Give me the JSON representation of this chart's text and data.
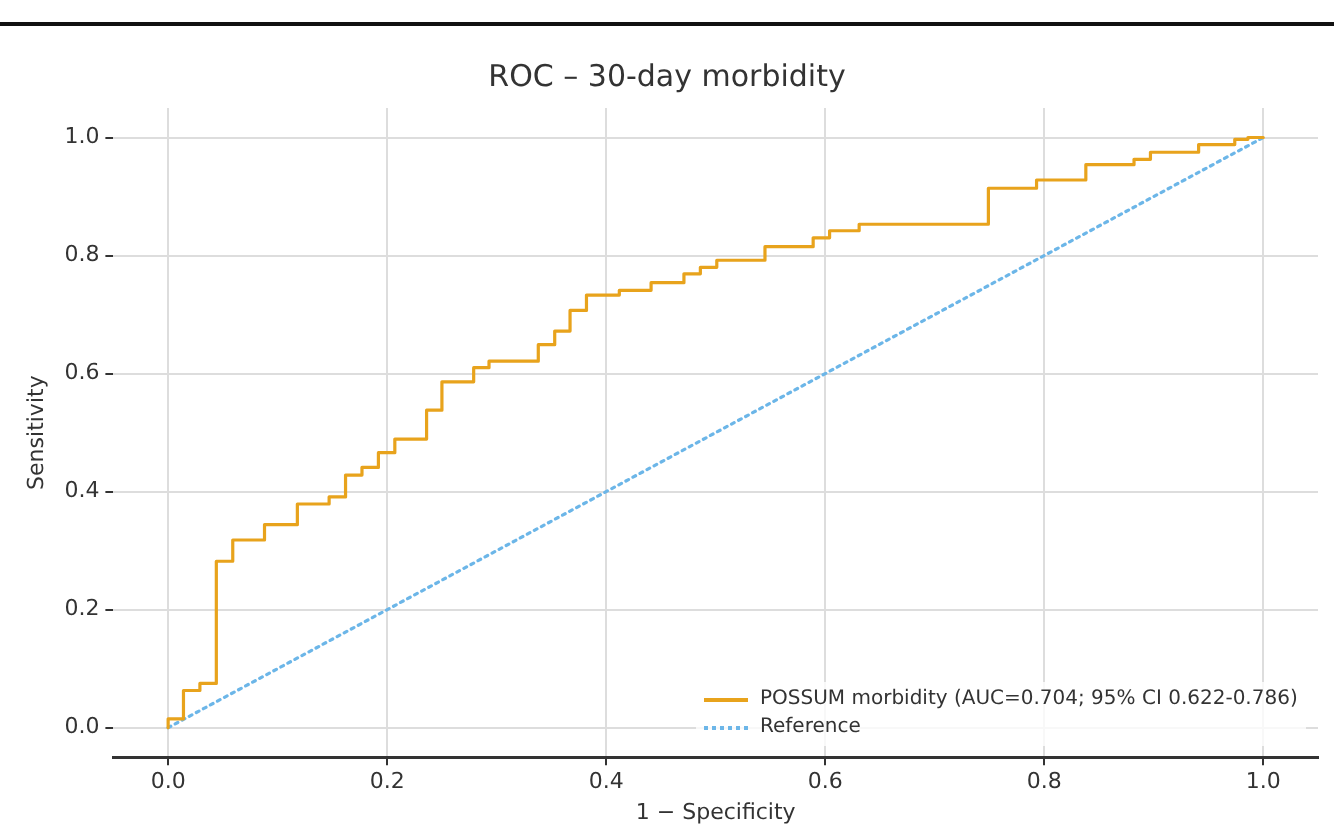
{
  "chart_data": {
    "type": "step",
    "title": "ROC – 30-day morbidity",
    "xlabel": "1 − Specificity",
    "ylabel": "Sensitivity",
    "series": [
      {
        "name": "POSSUM morbidity (AUC=0.704; 95% CI 0.622-0.786)",
        "type": "step",
        "color": "#e8a31c",
        "line_style": "solid",
        "x": [
          0,
          0,
          0.014,
          0.029,
          0.044,
          0.059,
          0.088,
          0.118,
          0.147,
          0.162,
          0.177,
          0.192,
          0.207,
          0.236,
          0.25,
          0.279,
          0.293,
          0.338,
          0.353,
          0.367,
          0.382,
          0.412,
          0.441,
          0.471,
          0.486,
          0.501,
          0.545,
          0.589,
          0.604,
          0.631,
          0.749,
          0.793,
          0.838,
          0.882,
          0.897,
          0.941,
          0.974,
          0.986,
          1
        ],
        "values": [
          0,
          0.015,
          0.063,
          0.075,
          0.282,
          0.318,
          0.344,
          0.379,
          0.391,
          0.428,
          0.441,
          0.466,
          0.489,
          0.538,
          0.586,
          0.61,
          0.621,
          0.649,
          0.672,
          0.707,
          0.733,
          0.741,
          0.754,
          0.769,
          0.78,
          0.792,
          0.815,
          0.83,
          0.842,
          0.853,
          0.914,
          0.928,
          0.954,
          0.963,
          0.975,
          0.988,
          0.997,
          1,
          1
        ]
      },
      {
        "name": "Reference",
        "type": "line",
        "color": "#6cb6e8",
        "line_style": "dotted",
        "x": [
          0,
          1
        ],
        "values": [
          0,
          1
        ]
      }
    ],
    "xlim": [
      -0.05,
      1.05
    ],
    "ylim": [
      -0.05,
      1.05
    ],
    "xticks": [
      {
        "value": 0,
        "label": "0.0"
      },
      {
        "value": 0.2,
        "label": "0.2"
      },
      {
        "value": 0.4,
        "label": "0.4"
      },
      {
        "value": 0.6,
        "label": "0.6"
      },
      {
        "value": 0.8,
        "label": "0.8"
      },
      {
        "value": 1,
        "label": "1.0"
      }
    ],
    "yticks": [
      {
        "value": 0,
        "label": "0.0"
      },
      {
        "value": 0.2,
        "label": "0.2"
      },
      {
        "value": 0.4,
        "label": "0.4"
      },
      {
        "value": 0.6,
        "label": "0.6"
      },
      {
        "value": 0.8,
        "label": "0.8"
      },
      {
        "value": 1,
        "label": "1.0"
      }
    ],
    "grid": true,
    "legend": "bottom right",
    "marker": "none"
  }
}
